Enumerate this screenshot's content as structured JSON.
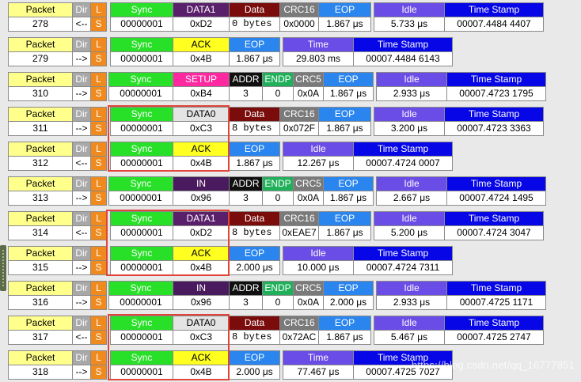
{
  "colors": {
    "packet_bg": "#ffff8c",
    "dir_bg": "#a8a8a8",
    "l_bg": "#f08a1e",
    "sync_bg": "#28e028",
    "pid_data1_bg": "#5a1f6b",
    "pid_data0_bg": "#e4e4e4",
    "pid_ack_bg": "#ffff20",
    "pid_setup_bg": "#ff28a0",
    "pid_in_bg": "#4a1a5e",
    "addr_bg": "#101010",
    "endp_bg": "#20b05a",
    "crc5_bg": "#7a7a7a",
    "data_bg": "#7a0c0c",
    "crc16_bg": "#7a7a7a",
    "eop_bg": "#2a86ee",
    "idle_bg": "#6a4ce6",
    "time_bg": "#6a4ce6",
    "timestamp_bg": "#0606e6",
    "highlight": "#e0453a"
  },
  "labels": {
    "packet": "Packet",
    "dir": "Dir",
    "l": "L",
    "s": "S",
    "sync": "Sync",
    "addr": "ADDR",
    "endp": "ENDP",
    "crc5": "CRC5",
    "data": "Data",
    "crc16": "CRC16",
    "eop": "EOP",
    "idle": "Idle",
    "time": "Time",
    "timestamp": "Time Stamp"
  },
  "packets": [
    {
      "num": "278",
      "dir": "<--",
      "type": "data",
      "sync": "00000001",
      "pid": "DATA1",
      "pid_val": "0xD2",
      "data": "0 bytes",
      "crc16": "0x0000",
      "eop": "1.867 μs",
      "gap_label": "Idle",
      "gap": "5.733 μs",
      "timestamp": "00007.4484 4407"
    },
    {
      "num": "279",
      "dir": "-->",
      "type": "hs",
      "sync": "00000001",
      "pid": "ACK",
      "pid_val": "0x4B",
      "eop": "1.867 μs",
      "gap_label": "Time",
      "gap": "29.803 ms",
      "timestamp": "00007.4484 6143"
    },
    {
      "num": "310",
      "dir": "-->",
      "type": "token",
      "sync": "00000001",
      "pid": "SETUP",
      "pid_val": "0xB4",
      "addr": "3",
      "endp": "0",
      "crc5": "0x0A",
      "eop": "1.867 μs",
      "gap_label": "Idle",
      "gap": "2.933 μs",
      "timestamp": "00007.4723 1795"
    },
    {
      "num": "311",
      "dir": "-->",
      "type": "data",
      "sync": "00000001",
      "pid": "DATA0",
      "pid_val": "0xC3",
      "data": "8 bytes",
      "crc16": "0x072F",
      "eop": "1.867 μs",
      "gap_label": "Idle",
      "gap": "3.200 μs",
      "timestamp": "00007.4723 3363"
    },
    {
      "num": "312",
      "dir": "<--",
      "type": "hs",
      "sync": "00000001",
      "pid": "ACK",
      "pid_val": "0x4B",
      "eop": "1.867 μs",
      "gap_label": "Idle",
      "gap": "12.267 μs",
      "timestamp": "00007.4724 0007"
    },
    {
      "num": "313",
      "dir": "-->",
      "type": "token",
      "sync": "00000001",
      "pid": "IN",
      "pid_val": "0x96",
      "addr": "3",
      "endp": "0",
      "crc5": "0x0A",
      "eop": "1.867 μs",
      "gap_label": "Idle",
      "gap": "2.667 μs",
      "timestamp": "00007.4724 1495"
    },
    {
      "num": "314",
      "dir": "<--",
      "type": "data",
      "sync": "00000001",
      "pid": "DATA1",
      "pid_val": "0xD2",
      "data": "8 bytes",
      "crc16": "0xEAE7",
      "eop": "1.867 μs",
      "gap_label": "Idle",
      "gap": "5.200 μs",
      "timestamp": "00007.4724 3047"
    },
    {
      "num": "315",
      "dir": "-->",
      "type": "hs",
      "sync": "00000001",
      "pid": "ACK",
      "pid_val": "0x4B",
      "eop": "2.000 μs",
      "gap_label": "Idle",
      "gap": "10.000 μs",
      "timestamp": "00007.4724 7311"
    },
    {
      "num": "316",
      "dir": "-->",
      "type": "token",
      "sync": "00000001",
      "pid": "IN",
      "pid_val": "0x96",
      "addr": "3",
      "endp": "0",
      "crc5": "0x0A",
      "eop": "2.000 μs",
      "gap_label": "Idle",
      "gap": "2.933 μs",
      "timestamp": "00007.4725 1171"
    },
    {
      "num": "317",
      "dir": "<--",
      "type": "data",
      "sync": "00000001",
      "pid": "DATA0",
      "pid_val": "0xC3",
      "data": "8 bytes",
      "crc16": "0x72AC",
      "eop": "1.867 μs",
      "gap_label": "Idle",
      "gap": "5.467 μs",
      "timestamp": "00007.4725 2747"
    },
    {
      "num": "318",
      "dir": "-->",
      "type": "hs",
      "sync": "00000001",
      "pid": "ACK",
      "pid_val": "0x4B",
      "eop": "2.000 μs",
      "gap_label": "Time",
      "gap": "77.467 μs",
      "timestamp": "00007.4725 7027"
    }
  ],
  "highlight_groups": [
    [
      3,
      4
    ],
    [
      6,
      7
    ],
    [
      9,
      10
    ]
  ],
  "watermark": "https://blog.csdn.net/qq_16777851"
}
